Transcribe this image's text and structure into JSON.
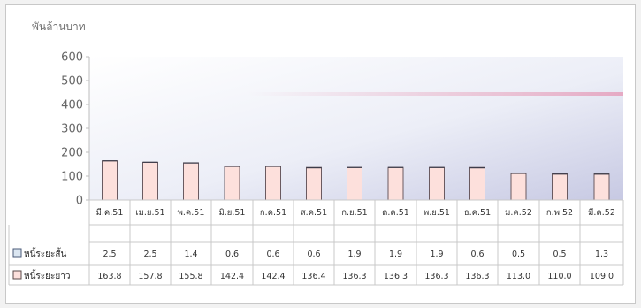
{
  "chart_data": {
    "type": "bar",
    "stacked": true,
    "ylabel": "พันล้านบาท",
    "ylim": [
      0,
      600
    ],
    "yticks": [
      0,
      100,
      200,
      300,
      400,
      500,
      600
    ],
    "grid": false,
    "legend": "data-table-left",
    "categories": [
      "มี.ค.51",
      "เม.ย.51",
      "พ.ค.51",
      "มิ.ย.51",
      "ก.ค.51",
      "ส.ค.51",
      "ก.ย.51",
      "ต.ค.51",
      "พ.ย.51",
      "ธ.ค.51",
      "ม.ค.52",
      "ก.พ.52",
      "มี.ค.52"
    ],
    "series": [
      {
        "name": "หนี้ระยะยาว",
        "color": "#fde0dc",
        "values": [
          163.8,
          157.8,
          155.8,
          142.4,
          142.4,
          136.4,
          136.3,
          136.3,
          136.3,
          136.3,
          113.0,
          110.0,
          109.0
        ],
        "labels": [
          "163.8",
          "157.8",
          "155.8",
          "142.4",
          "142.4",
          "136.4",
          "136.3",
          "136.3",
          "136.3",
          "136.3",
          "113.0",
          "110.0",
          "109.0"
        ]
      },
      {
        "name": "หนี้ระยะสั้น",
        "color": "#dbe6f1",
        "values": [
          2.5,
          2.5,
          1.4,
          0.6,
          0.6,
          0.6,
          1.9,
          1.9,
          1.9,
          0.6,
          0.5,
          0.5,
          1.3
        ],
        "labels": [
          "2.5",
          "2.5",
          "1.4",
          "0.6",
          "0.6",
          "0.6",
          "1.9",
          "1.9",
          "1.9",
          "0.6",
          "0.5",
          "0.5",
          "1.3"
        ]
      }
    ],
    "table_rows": [
      {
        "label": "หนี้ระยะสั้น",
        "series": 1
      },
      {
        "label": "หนี้ระยะยาว",
        "series": 0
      }
    ]
  }
}
